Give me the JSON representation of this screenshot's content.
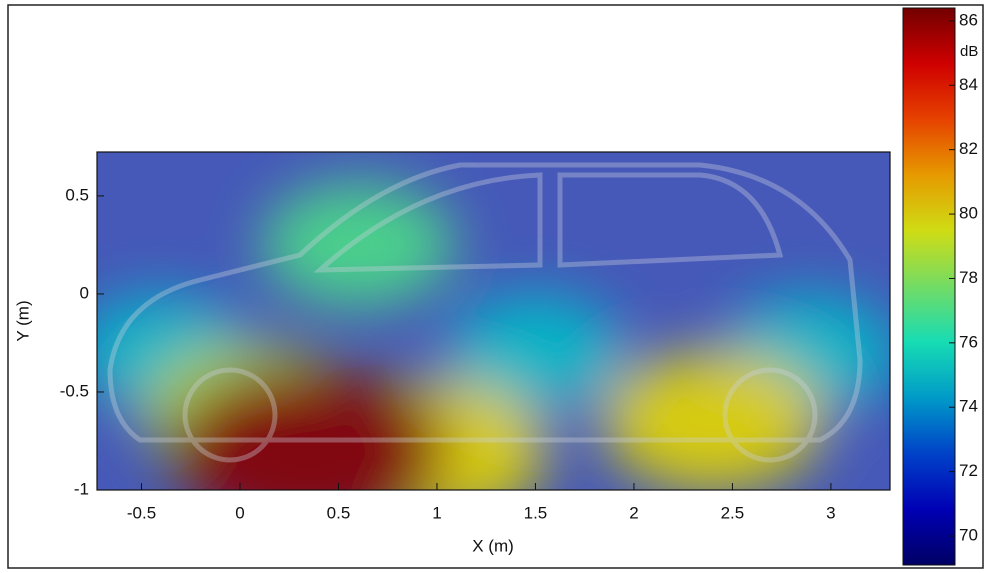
{
  "chart_data": {
    "type": "heatmap",
    "xlabel": "X (m)",
    "ylabel": "Y (m)",
    "xlim": [
      -0.726,
      3.3
    ],
    "ylim": [
      -1,
      0.724
    ],
    "xticks": [
      -0.5,
      0,
      0.5,
      1,
      1.5,
      2,
      2.5,
      3
    ],
    "yticks": [
      -1,
      -0.5,
      0,
      0.5
    ],
    "hotspots": {
      "x": [
        0.35,
        0.6,
        2.4,
        0.05,
        1.0,
        1.5,
        -0.4,
        2.9
      ],
      "y": [
        -0.8,
        0.25,
        -0.65,
        -0.6,
        -0.8,
        -0.3,
        -0.3,
        -0.3
      ],
      "level": [
        86,
        77,
        80,
        79,
        80,
        75,
        75,
        75
      ]
    },
    "colorbar": {
      "label": "dB",
      "lim": [
        69.1,
        86.4
      ],
      "ticks": [
        70,
        72,
        74,
        76,
        78,
        80,
        82,
        84,
        86
      ]
    }
  }
}
